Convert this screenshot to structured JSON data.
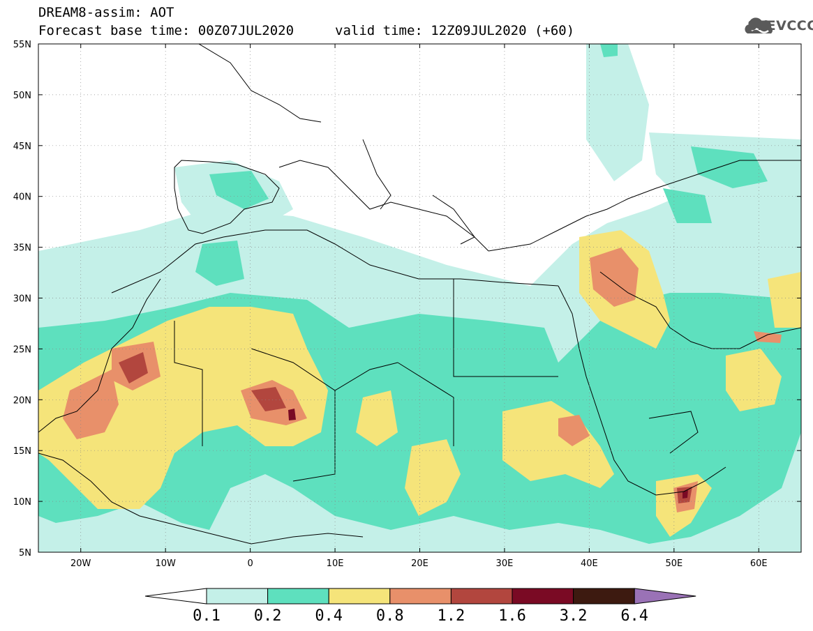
{
  "header": {
    "line1": "DREAM8-assim: AOT",
    "line2_left": "Forecast base time: 00Z07JUL2020",
    "line2_right": "valid time: 12Z09JUL2020 (+60)",
    "logo_text": "SEEVCCC",
    "logo_icon": "cloud-icon"
  },
  "map": {
    "lat_labels": [
      "55N",
      "50N",
      "45N",
      "40N",
      "35N",
      "30N",
      "25N",
      "20N",
      "15N",
      "10N",
      "5N"
    ],
    "lon_labels": [
      "20W",
      "10W",
      "0",
      "10E",
      "20E",
      "30E",
      "40E",
      "50E",
      "60E"
    ],
    "extent": {
      "lon_min": -25,
      "lon_max": 65,
      "lat_min": 5,
      "lat_max": 55
    },
    "grid": "dotted"
  },
  "colorbar": {
    "labels": [
      "0.1",
      "0.2",
      "0.4",
      "0.8",
      "1.2",
      "1.6",
      "3.2",
      "6.4"
    ],
    "colors": [
      "#ffffff",
      "#c4f0e8",
      "#5ee0be",
      "#f5e47a",
      "#e8906a",
      "#b2463e",
      "#7a0a24",
      "#3d1a10",
      "#9a72b6"
    ]
  }
}
